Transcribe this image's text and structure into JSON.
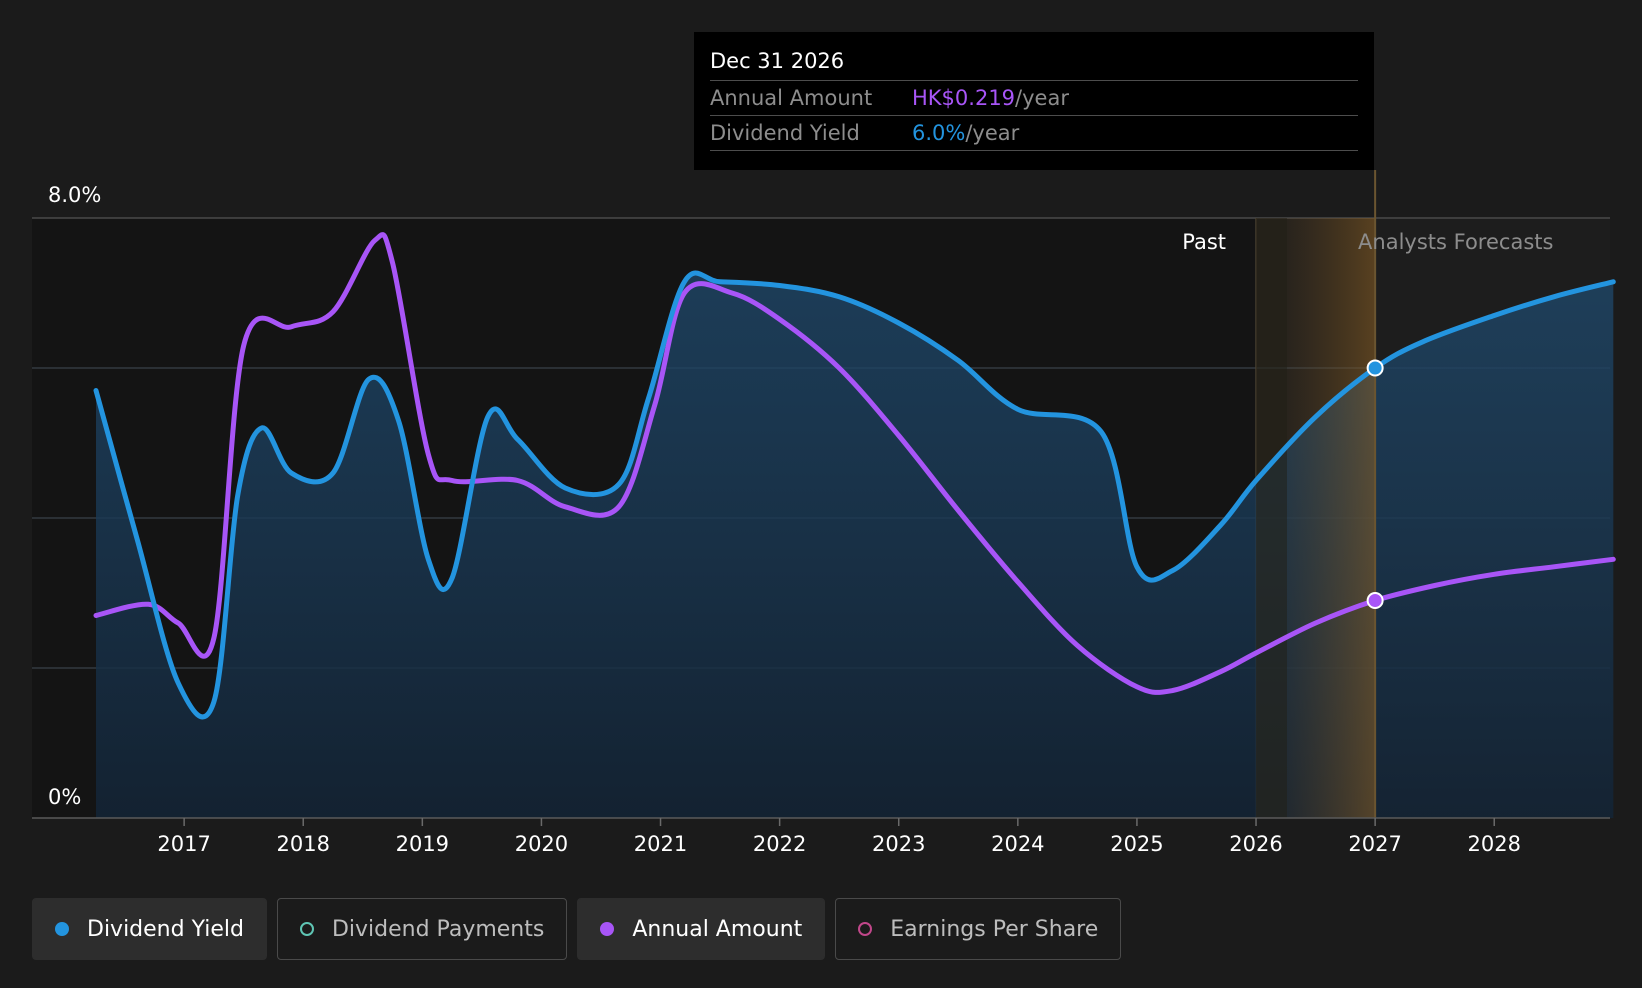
{
  "tooltip": {
    "date": "Dec 31 2026",
    "rows": [
      {
        "label": "Annual Amount",
        "value": "HK$0.219",
        "unit": "/year",
        "color": "#a855f7"
      },
      {
        "label": "Dividend Yield",
        "value": "6.0%",
        "unit": "/year",
        "color": "#2394df"
      }
    ]
  },
  "legend": [
    {
      "label": "Dividend Yield",
      "color": "#2394df",
      "filled": true,
      "active": true
    },
    {
      "label": "Dividend Payments",
      "color": "#5fc5b4",
      "filled": false,
      "active": false
    },
    {
      "label": "Annual Amount",
      "color": "#a855f7",
      "filled": true,
      "active": true
    },
    {
      "label": "Earnings Per Share",
      "color": "#c1478a",
      "filled": false,
      "active": false
    }
  ],
  "chart_data": {
    "type": "line",
    "title": "",
    "xlabel": "",
    "ylabel": "",
    "ylim": [
      0,
      8
    ],
    "y_tick_labels": [
      "0%",
      "8.0%"
    ],
    "x_tick_labels": [
      "2017",
      "2018",
      "2019",
      "2020",
      "2021",
      "2022",
      "2023",
      "2024",
      "2025",
      "2026",
      "2027",
      "2028"
    ],
    "xlim": [
      2016.26,
      2029.0
    ],
    "regions": {
      "past_label": "Past",
      "forecast_label": "Analysts Forecasts",
      "forecast_start": 2026.26,
      "past_end": 2026.0,
      "cursor": 2027.0
    },
    "series": [
      {
        "name": "Dividend Yield",
        "color": "#2394df",
        "points": [
          [
            2016.26,
            5.7
          ],
          [
            2016.6,
            3.75
          ],
          [
            2016.95,
            1.8
          ],
          [
            2017.25,
            1.55
          ],
          [
            2017.45,
            4.3
          ],
          [
            2017.65,
            5.2
          ],
          [
            2017.9,
            4.6
          ],
          [
            2018.25,
            4.6
          ],
          [
            2018.55,
            5.85
          ],
          [
            2018.8,
            5.3
          ],
          [
            2019.05,
            3.45
          ],
          [
            2019.25,
            3.2
          ],
          [
            2019.55,
            5.35
          ],
          [
            2019.8,
            5.05
          ],
          [
            2020.2,
            4.4
          ],
          [
            2020.65,
            4.45
          ],
          [
            2020.9,
            5.6
          ],
          [
            2021.2,
            7.15
          ],
          [
            2021.5,
            7.15
          ],
          [
            2022.0,
            7.1
          ],
          [
            2022.5,
            6.95
          ],
          [
            2023.0,
            6.6
          ],
          [
            2023.5,
            6.1
          ],
          [
            2024.0,
            5.45
          ],
          [
            2024.7,
            5.15
          ],
          [
            2025.0,
            3.35
          ],
          [
            2025.3,
            3.3
          ],
          [
            2025.7,
            3.9
          ],
          [
            2026.0,
            4.5
          ],
          [
            2026.5,
            5.35
          ],
          [
            2027.0,
            6.0
          ],
          [
            2027.4,
            6.35
          ],
          [
            2028.0,
            6.7
          ],
          [
            2028.5,
            6.95
          ],
          [
            2029.0,
            7.15
          ]
        ]
      },
      {
        "name": "Annual Amount",
        "color": "#a855f7",
        "points": [
          [
            2016.26,
            2.7
          ],
          [
            2016.7,
            2.85
          ],
          [
            2016.95,
            2.6
          ],
          [
            2017.25,
            2.4
          ],
          [
            2017.5,
            6.3
          ],
          [
            2017.9,
            6.55
          ],
          [
            2018.25,
            6.75
          ],
          [
            2018.6,
            7.7
          ],
          [
            2018.75,
            7.4
          ],
          [
            2019.05,
            4.85
          ],
          [
            2019.25,
            4.5
          ],
          [
            2019.8,
            4.5
          ],
          [
            2020.2,
            4.15
          ],
          [
            2020.65,
            4.15
          ],
          [
            2020.95,
            5.5
          ],
          [
            2021.2,
            7.0
          ],
          [
            2021.6,
            7.0
          ],
          [
            2022.0,
            6.65
          ],
          [
            2022.5,
            6.0
          ],
          [
            2023.0,
            5.1
          ],
          [
            2023.5,
            4.1
          ],
          [
            2024.0,
            3.15
          ],
          [
            2024.5,
            2.3
          ],
          [
            2025.0,
            1.75
          ],
          [
            2025.3,
            1.7
          ],
          [
            2025.7,
            1.95
          ],
          [
            2026.0,
            2.2
          ],
          [
            2026.5,
            2.6
          ],
          [
            2027.0,
            2.9
          ],
          [
            2027.5,
            3.1
          ],
          [
            2028.0,
            3.25
          ],
          [
            2028.5,
            3.35
          ],
          [
            2029.0,
            3.45
          ]
        ]
      }
    ]
  }
}
